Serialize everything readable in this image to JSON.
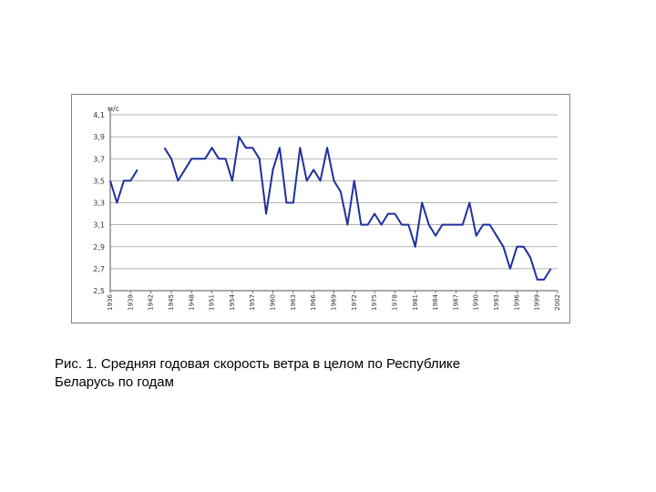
{
  "chart_data": {
    "type": "line",
    "ylabel": "м/с",
    "title": "",
    "xlabel": "",
    "ylim": [
      2.5,
      4.1
    ],
    "yticks": [
      "4,1",
      "3,9",
      "3,7",
      "3,5",
      "3,3",
      "3,1",
      "2,9",
      "2,7",
      "2,5"
    ],
    "ytick_values": [
      4.1,
      3.9,
      3.7,
      3.5,
      3.3,
      3.1,
      2.9,
      2.7,
      2.5
    ],
    "xticks": [
      "1936",
      "1939",
      "1942",
      "1945",
      "1948",
      "1951",
      "1954",
      "1957",
      "1960",
      "1963",
      "1966",
      "1969",
      "1972",
      "1975",
      "1978",
      "1981",
      "1984",
      "1987",
      "1990",
      "1993",
      "1996",
      "1999",
      "2002"
    ],
    "grid": true,
    "color": "#1f2f9f",
    "series": [
      {
        "points": [
          [
            1936,
            3.5
          ],
          [
            1937,
            3.3
          ],
          [
            1938,
            3.5
          ],
          [
            1939,
            3.5
          ],
          [
            1940,
            3.6
          ],
          [
            1944,
            3.8
          ],
          [
            1945,
            3.7
          ],
          [
            1946,
            3.5
          ],
          [
            1947,
            3.6
          ],
          [
            1948,
            3.7
          ],
          [
            1949,
            3.7
          ],
          [
            1950,
            3.7
          ],
          [
            1951,
            3.8
          ],
          [
            1952,
            3.7
          ],
          [
            1953,
            3.7
          ],
          [
            1954,
            3.5
          ],
          [
            1955,
            3.9
          ],
          [
            1956,
            3.8
          ],
          [
            1957,
            3.8
          ],
          [
            1958,
            3.7
          ],
          [
            1959,
            3.2
          ],
          [
            1960,
            3.6
          ],
          [
            1961,
            3.8
          ],
          [
            1962,
            3.3
          ],
          [
            1963,
            3.3
          ],
          [
            1964,
            3.8
          ],
          [
            1965,
            3.5
          ],
          [
            1966,
            3.6
          ],
          [
            1967,
            3.5
          ],
          [
            1968,
            3.8
          ],
          [
            1969,
            3.5
          ],
          [
            1970,
            3.4
          ],
          [
            1971,
            3.1
          ],
          [
            1972,
            3.5
          ],
          [
            1973,
            3.1
          ],
          [
            1974,
            3.1
          ],
          [
            1975,
            3.2
          ],
          [
            1976,
            3.1
          ],
          [
            1977,
            3.2
          ],
          [
            1978,
            3.2
          ],
          [
            1979,
            3.1
          ],
          [
            1980,
            3.1
          ],
          [
            1981,
            2.9
          ],
          [
            1982,
            3.3
          ],
          [
            1983,
            3.1
          ],
          [
            1984,
            3.0
          ],
          [
            1985,
            3.1
          ],
          [
            1986,
            3.1
          ],
          [
            1987,
            3.1
          ],
          [
            1988,
            3.1
          ],
          [
            1989,
            3.3
          ],
          [
            1990,
            3.0
          ],
          [
            1991,
            3.1
          ],
          [
            1992,
            3.1
          ],
          [
            1993,
            3.0
          ],
          [
            1994,
            2.9
          ],
          [
            1995,
            2.7
          ],
          [
            1996,
            2.9
          ],
          [
            1997,
            2.9
          ],
          [
            1998,
            2.8
          ],
          [
            1999,
            2.6
          ],
          [
            2000,
            2.6
          ],
          [
            2001,
            2.7
          ]
        ]
      }
    ]
  },
  "caption": {
    "line1": "Рис. 1. Средняя годовая скорость ветра в целом по Республике",
    "line2": "Беларусь по годам"
  }
}
